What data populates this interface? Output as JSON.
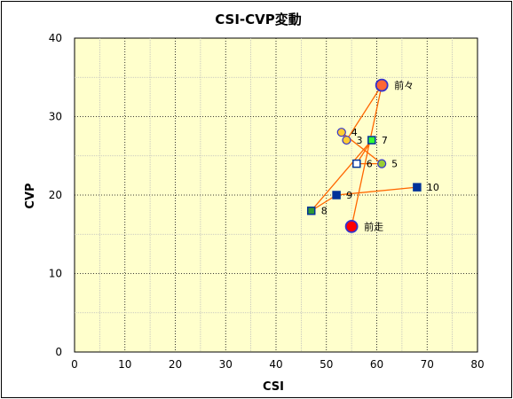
{
  "chart_data": {
    "type": "scatter",
    "title": "CSI-CVP変動",
    "xlabel": "CSI",
    "ylabel": "CVP",
    "xlim": [
      0,
      80
    ],
    "ylim": [
      0,
      40
    ],
    "xticks": [
      "0",
      "10",
      "20",
      "30",
      "40",
      "50",
      "60",
      "70",
      "80"
    ],
    "yticks": [
      "0",
      "10",
      "20",
      "30",
      "40"
    ],
    "grid": true,
    "plot_background": "#ffffcc",
    "line_color": "#ff6600",
    "points": [
      {
        "label": "前走",
        "x": 55,
        "y": 16,
        "marker": "circle",
        "fill": "#ff0000",
        "stroke": "#3333cc"
      },
      {
        "label": "前々",
        "x": 61,
        "y": 34,
        "marker": "circle",
        "fill": "#ff6633",
        "stroke": "#3333cc"
      },
      {
        "label": "3",
        "x": 54,
        "y": 27,
        "marker": "circle",
        "fill": "#ffcc33",
        "stroke": "#3333cc"
      },
      {
        "label": "4",
        "x": 53,
        "y": 28,
        "marker": "circle",
        "fill": "#ffcc33",
        "stroke": "#3333cc"
      },
      {
        "label": "5",
        "x": 61,
        "y": 24,
        "marker": "circle",
        "fill": "#99cc33",
        "stroke": "#3333cc"
      },
      {
        "label": "6",
        "x": 56,
        "y": 24,
        "marker": "square",
        "fill": "#ffffff",
        "stroke": "#003399"
      },
      {
        "label": "7",
        "x": 59,
        "y": 27,
        "marker": "square",
        "fill": "#33ff33",
        "stroke": "#003399"
      },
      {
        "label": "8",
        "x": 47,
        "y": 18,
        "marker": "square",
        "fill": "#339933",
        "stroke": "#003399"
      },
      {
        "label": "9",
        "x": 52,
        "y": 20,
        "marker": "square",
        "fill": "#003399",
        "stroke": "#003399"
      },
      {
        "label": "10",
        "x": 68,
        "y": 21,
        "marker": "square",
        "fill": "#003399",
        "stroke": "#003399"
      }
    ]
  }
}
